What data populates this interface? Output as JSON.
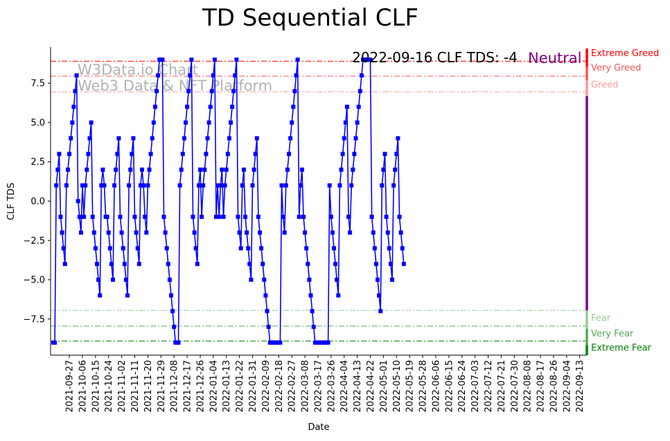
{
  "chart_data": {
    "type": "line",
    "title": "TD Sequential CLF",
    "xlabel": "Date",
    "ylabel": "CLF TDS",
    "ylim": [
      -9.8,
      9.8
    ],
    "yticks": [
      -7.5,
      -5.0,
      -2.5,
      0.0,
      2.5,
      5.0,
      7.5
    ],
    "ytick_labels": [
      "−7.5",
      "−5.0",
      "−2.5",
      "0.0",
      "2.5",
      "5.0",
      "7.5"
    ],
    "x_start": "2021-09-16",
    "x_end": "2022-09-16",
    "xtick_labels": [
      "2021-09-27",
      "2021-10-06",
      "2021-10-15",
      "2021-10-24",
      "2021-11-02",
      "2021-11-11",
      "2021-11-20",
      "2021-11-29",
      "2021-12-08",
      "2021-12-17",
      "2021-12-26",
      "2022-01-04",
      "2022-01-13",
      "2022-01-22",
      "2022-01-31",
      "2022-02-09",
      "2022-02-18",
      "2022-02-27",
      "2022-03-08",
      "2022-03-17",
      "2022-03-26",
      "2022-04-04",
      "2022-04-13",
      "2022-04-22",
      "2022-05-01",
      "2022-05-10",
      "2022-05-19",
      "2022-05-28",
      "2022-06-06",
      "2022-06-15",
      "2022-06-24",
      "2022-07-03",
      "2022-07-12",
      "2022-07-21",
      "2022-07-30",
      "2022-08-08",
      "2022-08-17",
      "2022-08-26",
      "2022-09-04",
      "2022-09-13"
    ],
    "series": [
      {
        "name": "CLF TDS",
        "color": "#0000ff",
        "marker": "square",
        "values": [
          -9,
          -9,
          1,
          2,
          3,
          -1,
          -2,
          -3,
          -4,
          1,
          2,
          3,
          4,
          5,
          6,
          7,
          8,
          0,
          -1,
          -2,
          1,
          -1,
          1,
          2,
          3,
          4,
          5,
          -1,
          -2,
          -3,
          -4,
          -5,
          -6,
          1,
          2,
          1,
          -1,
          -1,
          -2,
          -3,
          -4,
          -5,
          1,
          2,
          3,
          4,
          -1,
          -2,
          -3,
          -4,
          -5,
          -6,
          1,
          2,
          3,
          4,
          -1,
          -2,
          -3,
          -4,
          1,
          2,
          1,
          -1,
          -2,
          1,
          2,
          3,
          4,
          5,
          6,
          7,
          8,
          9,
          9,
          9,
          -1,
          -2,
          -3,
          -4,
          -5,
          -6,
          -7,
          -8,
          -9,
          -9,
          -9,
          1,
          2,
          3,
          4,
          5,
          6,
          7,
          8,
          9,
          -1,
          -2,
          -3,
          -4,
          1,
          2,
          -1,
          1,
          2,
          3,
          4,
          5,
          6,
          7,
          8,
          9,
          -1,
          1,
          -1,
          1,
          2,
          -1,
          1,
          2,
          3,
          4,
          5,
          6,
          7,
          8,
          9,
          -1,
          -2,
          -3,
          1,
          2,
          -1,
          -2,
          -3,
          -4,
          -5,
          1,
          2,
          3,
          4,
          -1,
          -2,
          -3,
          -4,
          -5,
          -6,
          -7,
          -8,
          -9,
          -9,
          -9,
          -9,
          -9,
          -9,
          -9,
          -9,
          1,
          -1,
          -2,
          1,
          2,
          3,
          4,
          5,
          6,
          7,
          8,
          9,
          -1,
          1,
          2,
          -1,
          -2,
          -3,
          -4,
          -5,
          -6,
          -7,
          -8,
          -9,
          -9,
          -9,
          -9,
          -9,
          -9,
          -9,
          -9,
          -9,
          -9,
          1,
          -1,
          -2,
          -3,
          -4,
          -5,
          -6,
          1,
          2,
          3,
          4,
          5,
          6,
          -1,
          -2,
          1,
          2,
          3,
          4,
          5,
          6,
          7,
          8,
          9,
          9,
          9,
          9,
          9,
          9,
          -1,
          -2,
          -3,
          -4,
          -5,
          -6,
          -7,
          1,
          2,
          3,
          -1,
          -2,
          -3,
          -4,
          -5,
          1,
          2,
          3,
          4,
          -1,
          -2,
          -3,
          -4
        ]
      }
    ],
    "thresholds": [
      {
        "label": "Extreme Greed",
        "value": 8.9,
        "color": "#ff0000"
      },
      {
        "label": "Very Greed",
        "value": 7.95,
        "color": "#ff5555"
      },
      {
        "label": "Greed",
        "value": 6.95,
        "color": "#ff9999"
      },
      {
        "label": "Fear",
        "value": -6.95,
        "color": "#99cc99"
      },
      {
        "label": "Very Fear",
        "value": -7.95,
        "color": "#55aa55"
      },
      {
        "label": "Extreme Fear",
        "value": -8.9,
        "color": "#008000"
      }
    ],
    "status_text": "2022-09-16 CLF TDS: -4",
    "status_label": "Neutral",
    "status_color": "#800080",
    "watermark": [
      "W3Data.io Chart",
      "Web3 Data & NFT Platform"
    ]
  }
}
